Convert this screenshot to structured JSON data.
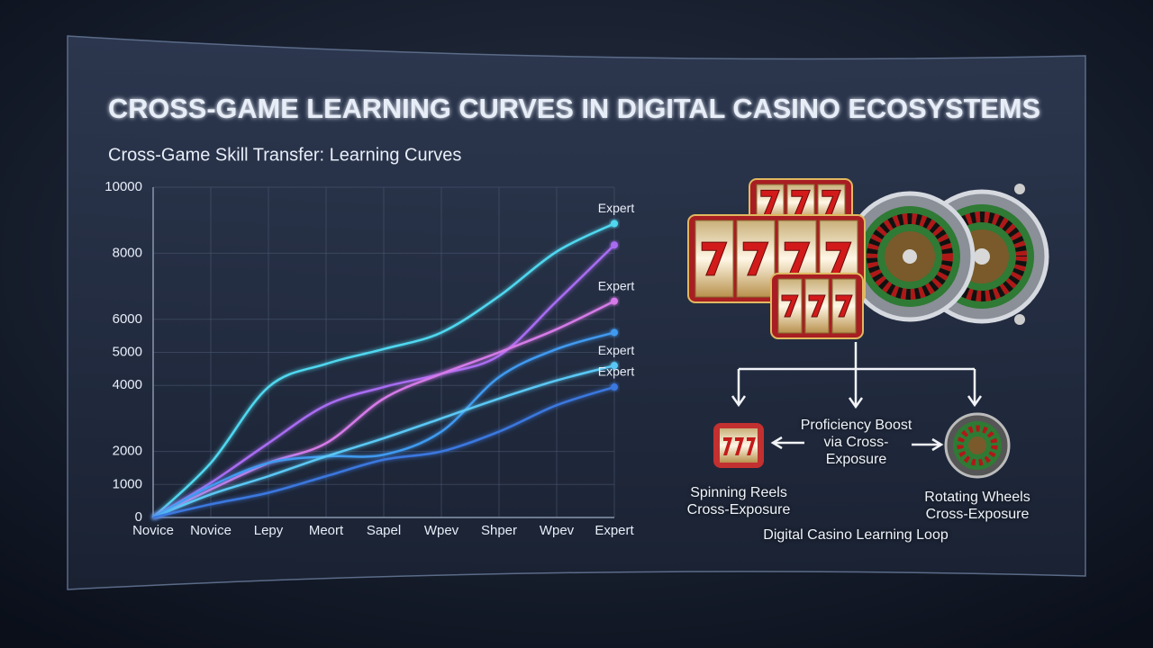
{
  "title": "CROSS-GAME LEARNING CURVES IN DIGITAL CASINO ECOSYSTEMS",
  "chart_data": {
    "type": "line",
    "title": "Cross-Game Skill Transfer: Learning Curves",
    "categories": [
      "Novice",
      "Novice",
      "Lepy",
      "Meort",
      "Sapel",
      "Wpev",
      "Shper",
      "Wpev",
      "Expert"
    ],
    "series": [
      {
        "color": "#4fd8f0",
        "values": [
          0,
          1650,
          3950,
          4650,
          5100,
          5600,
          6700,
          8050,
          8900
        ]
      },
      {
        "color": "#a86cf2",
        "values": [
          0,
          1050,
          2250,
          3400,
          3950,
          4350,
          4900,
          6550,
          8250
        ]
      },
      {
        "color": "#d57ae8",
        "values": [
          0,
          850,
          1650,
          2250,
          3600,
          4350,
          5000,
          5700,
          6550
        ]
      },
      {
        "color": "#3f9af0",
        "values": [
          0,
          950,
          1650,
          1850,
          1900,
          2600,
          4250,
          5100,
          5600
        ]
      },
      {
        "color": "#5ac8f5",
        "values": [
          0,
          700,
          1250,
          1850,
          2400,
          3000,
          3600,
          4150,
          4600
        ]
      },
      {
        "color": "#3a78e0",
        "values": [
          0,
          400,
          750,
          1250,
          1750,
          2000,
          2600,
          3400,
          3950
        ]
      }
    ],
    "annotations": [
      "Expert",
      "Expert",
      "Expert",
      "Expert"
    ],
    "ylim": [
      0,
      10000
    ],
    "yticks": [
      0,
      1000,
      2000,
      4000,
      5000,
      6000,
      8000,
      10000
    ],
    "grid": true
  },
  "diagram": {
    "left_label": "Spinning Reels Cross-Exposure",
    "center_label": "Proficiency Boost via Cross-Exposure",
    "right_label": "Rotating Wheels Cross-Exposure",
    "caption": "Digital Casino Learning Loop"
  }
}
